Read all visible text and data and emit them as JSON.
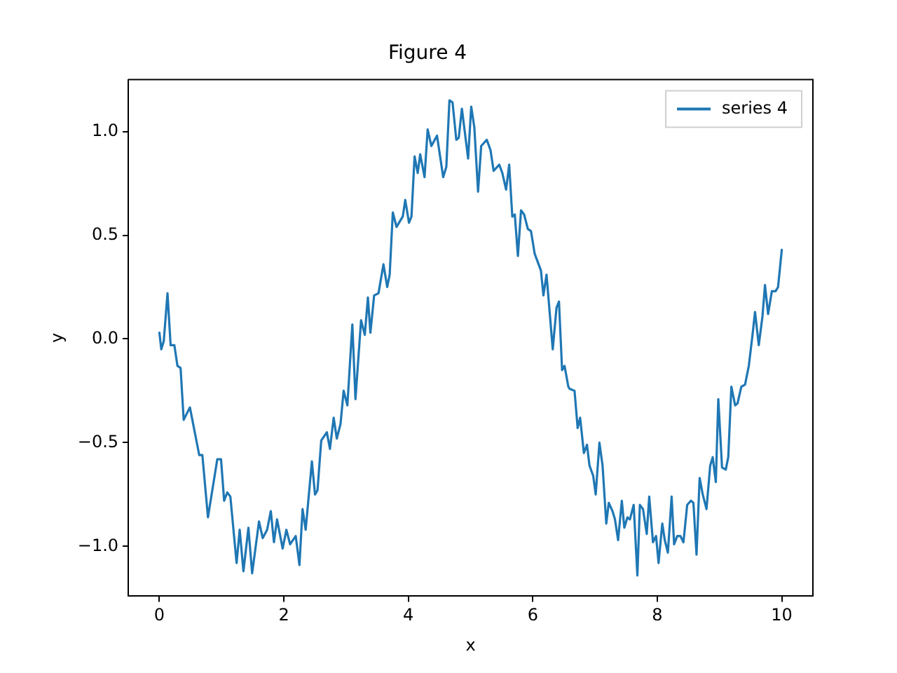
{
  "chart_data": {
    "type": "line",
    "title": "Figure 4",
    "xlabel": "x",
    "ylabel": "y",
    "xlim": [
      -0.5,
      10.5
    ],
    "xticks": [
      0,
      2,
      4,
      6,
      8,
      10
    ],
    "ylim": [
      -1.24,
      1.25
    ],
    "yticks": [
      {
        "value": -1,
        "label": "−1.0"
      },
      {
        "value": -0.5,
        "label": "−0.5"
      },
      {
        "value": 0,
        "label": "0.0"
      },
      {
        "value": 0.5,
        "label": "0.5"
      },
      {
        "value": 1,
        "label": "1.0"
      }
    ],
    "grid": false,
    "legend": "top right",
    "marker": "none",
    "line_style": "solid",
    "series": [
      {
        "name": "series 4",
        "color": "#1f77b4",
        "x": [
          0,
          0.03,
          0.07,
          0.13,
          0.18,
          0.24,
          0.29,
          0.34,
          0.39,
          0.49,
          0.64,
          0.69,
          0.78,
          0.93,
          0.99,
          1.04,
          1.09,
          1.14,
          1.24,
          1.29,
          1.35,
          1.43,
          1.49,
          1.6,
          1.66,
          1.73,
          1.79,
          1.84,
          1.89,
          1.98,
          2.04,
          2.1,
          2.19,
          2.25,
          2.3,
          2.35,
          2.45,
          2.5,
          2.54,
          2.6,
          2.69,
          2.74,
          2.8,
          2.85,
          2.91,
          2.96,
          3.02,
          3.1,
          3.15,
          3.24,
          3.3,
          3.35,
          3.39,
          3.45,
          3.52,
          3.6,
          3.66,
          3.7,
          3.75,
          3.81,
          3.91,
          3.95,
          4.01,
          4.05,
          4.1,
          4.15,
          4.19,
          4.26,
          4.31,
          4.37,
          4.46,
          4.56,
          4.61,
          4.66,
          4.71,
          4.77,
          4.81,
          4.86,
          4.96,
          5.01,
          5.06,
          5.12,
          5.17,
          5.26,
          5.32,
          5.37,
          5.46,
          5.51,
          5.57,
          5.62,
          5.67,
          5.71,
          5.76,
          5.81,
          5.86,
          5.92,
          5.97,
          6.03,
          6.13,
          6.17,
          6.22,
          6.32,
          6.38,
          6.42,
          6.47,
          6.51,
          6.57,
          6.59,
          6.67,
          6.72,
          6.76,
          6.82,
          6.87,
          6.91,
          6.97,
          7.01,
          7.07,
          7.12,
          7.18,
          7.22,
          7.28,
          7.32,
          7.37,
          7.43,
          7.47,
          7.52,
          7.56,
          7.62,
          7.68,
          7.72,
          7.77,
          7.83,
          7.87,
          7.93,
          7.98,
          8.02,
          8.08,
          8.12,
          8.17,
          8.23,
          8.27,
          8.32,
          8.37,
          8.42,
          8.48,
          8.54,
          8.58,
          8.63,
          8.68,
          8.73,
          8.79,
          8.85,
          8.89,
          8.94,
          8.98,
          9.04,
          9.1,
          9.14,
          9.19,
          9.25,
          9.29,
          9.35,
          9.41,
          9.47,
          9.53,
          9.57,
          9.63,
          9.69,
          9.73,
          9.78,
          9.84,
          9.9,
          9.94,
          10
        ],
        "values": [
          0.03,
          -0.05,
          -0.01,
          0.22,
          -0.03,
          -0.03,
          -0.13,
          -0.14,
          -0.39,
          -0.33,
          -0.56,
          -0.56,
          -0.86,
          -0.58,
          -0.58,
          -0.78,
          -0.74,
          -0.76,
          -1.08,
          -0.92,
          -1.12,
          -0.91,
          -1.13,
          -0.88,
          -0.96,
          -0.92,
          -0.83,
          -0.98,
          -0.87,
          -1.01,
          -0.92,
          -0.99,
          -0.95,
          -1.09,
          -0.82,
          -0.92,
          -0.59,
          -0.75,
          -0.73,
          -0.49,
          -0.45,
          -0.53,
          -0.38,
          -0.48,
          -0.41,
          -0.25,
          -0.32,
          0.07,
          -0.29,
          0.09,
          0.02,
          0.2,
          0.03,
          0.21,
          0.22,
          0.36,
          0.25,
          0.31,
          0.61,
          0.54,
          0.59,
          0.67,
          0.56,
          0.59,
          0.88,
          0.8,
          0.89,
          0.78,
          1.01,
          0.93,
          0.98,
          0.78,
          0.83,
          1.15,
          1.14,
          0.96,
          0.97,
          1.11,
          0.87,
          1.12,
          1.02,
          0.71,
          0.93,
          0.96,
          0.91,
          0.81,
          0.84,
          0.8,
          0.72,
          0.84,
          0.59,
          0.6,
          0.4,
          0.62,
          0.6,
          0.53,
          0.52,
          0.41,
          0.33,
          0.21,
          0.31,
          -0.05,
          0.15,
          0.18,
          -0.15,
          -0.13,
          -0.23,
          -0.24,
          -0.25,
          -0.43,
          -0.38,
          -0.55,
          -0.51,
          -0.61,
          -0.66,
          -0.75,
          -0.5,
          -0.61,
          -0.89,
          -0.79,
          -0.83,
          -0.87,
          -0.97,
          -0.78,
          -0.91,
          -0.86,
          -0.87,
          -0.8,
          -1.14,
          -0.8,
          -0.82,
          -0.94,
          -0.76,
          -0.98,
          -0.95,
          -1.08,
          -0.89,
          -0.97,
          -1.03,
          -0.76,
          -0.99,
          -0.95,
          -0.95,
          -0.98,
          -0.8,
          -0.78,
          -0.79,
          -1.04,
          -0.67,
          -0.75,
          -0.82,
          -0.61,
          -0.57,
          -0.69,
          -0.29,
          -0.62,
          -0.63,
          -0.57,
          -0.23,
          -0.32,
          -0.31,
          -0.23,
          -0.22,
          -0.13,
          0.02,
          0.13,
          -0.03,
          0.11,
          0.26,
          0.12,
          0.23,
          0.23,
          0.25,
          0.43
        ]
      }
    ]
  }
}
